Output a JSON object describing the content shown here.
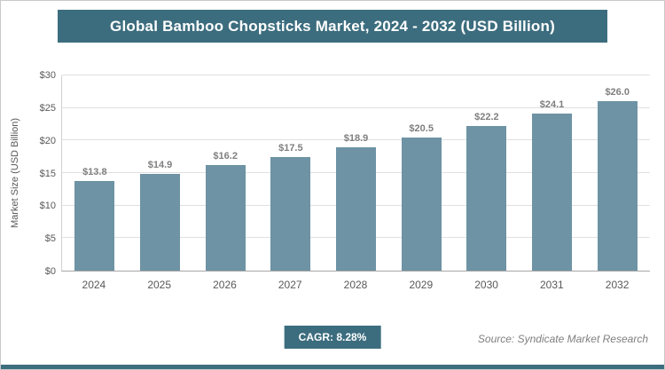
{
  "title": "Global Bamboo Chopsticks Market, 2024 - 2032 (USD Billion)",
  "footer": {
    "cagr_label": "CAGR: 8.28%",
    "source": "Source: Syndicate Market Research"
  },
  "colors": {
    "accent": "#3c6d7e",
    "bar": "#6d93a4",
    "gridline": "#e0e0e0",
    "tick_text": "#595959",
    "value_label_text": "#7f7f7f"
  },
  "chart_data": {
    "type": "bar",
    "title": "Global Bamboo Chopsticks Market, 2024 - 2032 (USD Billion)",
    "categories": [
      "2024",
      "2025",
      "2026",
      "2027",
      "2028",
      "2029",
      "2030",
      "2031",
      "2032"
    ],
    "values": [
      13.8,
      14.9,
      16.2,
      17.5,
      18.9,
      20.5,
      22.2,
      24.1,
      26.0
    ],
    "value_labels": [
      "$13.8",
      "$14.9",
      "$16.2",
      "$17.5",
      "$18.9",
      "$20.5",
      "$22.2",
      "$24.1",
      "$26.0"
    ],
    "xlabel": "",
    "ylabel": "Market Size (USD Billion)",
    "ylim": [
      0,
      30
    ],
    "yticks": [
      0,
      5,
      10,
      15,
      20,
      25,
      30
    ],
    "ytick_labels": [
      "$0",
      "$5",
      "$10",
      "$15",
      "$20",
      "$25",
      "$30"
    ],
    "grid": true,
    "legend_position": "none",
    "cagr": "8.28%"
  }
}
